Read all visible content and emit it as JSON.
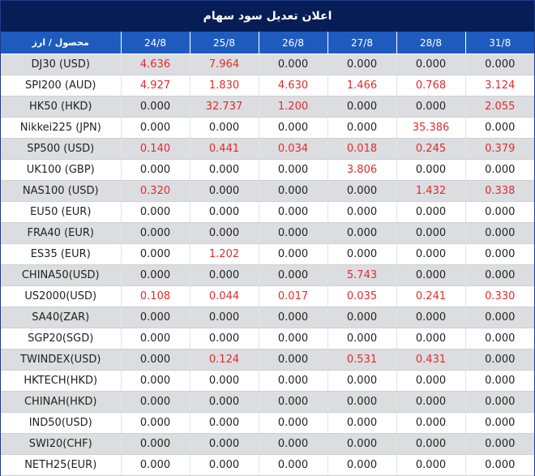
{
  "title": "اعلان تعدیل سود سهام",
  "header": {
    "instrument_label": "محصول / ارز",
    "dates": [
      "24/8",
      "25/8",
      "26/8",
      "27/8",
      "28/8",
      "31/8"
    ]
  },
  "colors": {
    "title_bg": "#071d55",
    "header_bg": "#1f5bbf",
    "positive": "#e32b2b",
    "zero": "#222222",
    "stripe": "#dcdde1"
  },
  "rows": [
    {
      "instrument": "DJ30 (USD)",
      "values": [
        "4.636",
        "7.964",
        "0.000",
        "0.000",
        "0.000",
        "0.000"
      ]
    },
    {
      "instrument": "SPI200 (AUD)",
      "values": [
        "4.927",
        "1.830",
        "4.630",
        "1.466",
        "0.768",
        "3.124"
      ]
    },
    {
      "instrument": "HK50 (HKD)",
      "values": [
        "0.000",
        "32.737",
        "1.200",
        "0.000",
        "0.000",
        "2.055"
      ]
    },
    {
      "instrument": "Nikkei225 (JPN)",
      "values": [
        "0.000",
        "0.000",
        "0.000",
        "0.000",
        "35.386",
        "0.000"
      ]
    },
    {
      "instrument": "SP500 (USD)",
      "values": [
        "0.140",
        "0.441",
        "0.034",
        "0.018",
        "0.245",
        "0.379"
      ]
    },
    {
      "instrument": "UK100 (GBP)",
      "values": [
        "0.000",
        "0.000",
        "0.000",
        "3.806",
        "0.000",
        "0.000"
      ]
    },
    {
      "instrument": "NAS100 (USD)",
      "values": [
        "0.320",
        "0.000",
        "0.000",
        "0.000",
        "1.432",
        "0.338"
      ]
    },
    {
      "instrument": "EU50 (EUR)",
      "values": [
        "0.000",
        "0.000",
        "0.000",
        "0.000",
        "0.000",
        "0.000"
      ]
    },
    {
      "instrument": "FRA40 (EUR)",
      "values": [
        "0.000",
        "0.000",
        "0.000",
        "0.000",
        "0.000",
        "0.000"
      ]
    },
    {
      "instrument": "ES35 (EUR)",
      "values": [
        "0.000",
        "1.202",
        "0.000",
        "0.000",
        "0.000",
        "0.000"
      ]
    },
    {
      "instrument": "CHINA50(USD)",
      "values": [
        "0.000",
        "0.000",
        "0.000",
        "5.743",
        "0.000",
        "0.000"
      ]
    },
    {
      "instrument": "US2000(USD)",
      "values": [
        "0.108",
        "0.044",
        "0.017",
        "0.035",
        "0.241",
        "0.330"
      ]
    },
    {
      "instrument": "SA40(ZAR)",
      "values": [
        "0.000",
        "0.000",
        "0.000",
        "0.000",
        "0.000",
        "0.000"
      ]
    },
    {
      "instrument": "SGP20(SGD)",
      "values": [
        "0.000",
        "0.000",
        "0.000",
        "0.000",
        "0.000",
        "0.000"
      ]
    },
    {
      "instrument": "TWINDEX(USD)",
      "values": [
        "0.000",
        "0.124",
        "0.000",
        "0.531",
        "0.431",
        "0.000"
      ]
    },
    {
      "instrument": "HKTECH(HKD)",
      "values": [
        "0.000",
        "0.000",
        "0.000",
        "0.000",
        "0.000",
        "0.000"
      ]
    },
    {
      "instrument": "CHINAH(HKD)",
      "values": [
        "0.000",
        "0.000",
        "0.000",
        "0.000",
        "0.000",
        "0.000"
      ]
    },
    {
      "instrument": "IND50(USD)",
      "values": [
        "0.000",
        "0.000",
        "0.000",
        "0.000",
        "0.000",
        "0.000"
      ]
    },
    {
      "instrument": "SWI20(CHF)",
      "values": [
        "0.000",
        "0.000",
        "0.000",
        "0.000",
        "0.000",
        "0.000"
      ]
    },
    {
      "instrument": "NETH25(EUR)",
      "values": [
        "0.000",
        "0.000",
        "0.000",
        "0.000",
        "0.000",
        "0.000"
      ]
    }
  ]
}
